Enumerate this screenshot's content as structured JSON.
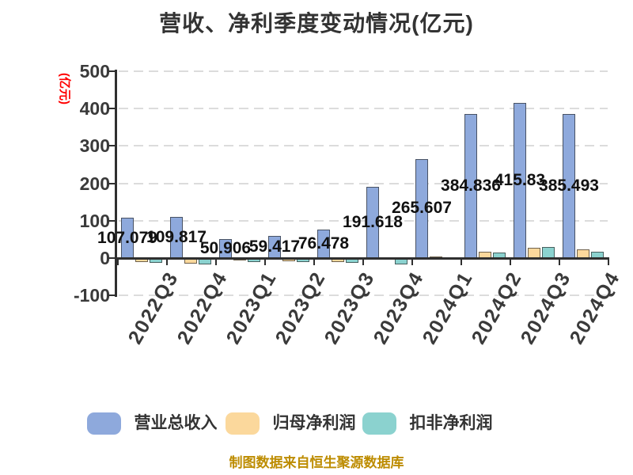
{
  "header": {
    "title": "营收、净利季度变动情况(亿元)"
  },
  "y_axis": {
    "label": "(亿元)"
  },
  "footer": {
    "note": "制图数据来自恒生聚源数据库"
  },
  "legend": {
    "items": [
      "营业总收入",
      "归母净利润",
      "扣非净利润"
    ]
  },
  "colors": {
    "background": "#FFFFFF",
    "grid": "#DCDCDC",
    "axis": "#2F2F2F",
    "tick_text": "#3A3A3A",
    "bar_label_text": "#111111",
    "y_axis_label": "#FF0000",
    "footer_text": "#BD8C00"
  },
  "chart_data": {
    "type": "bar",
    "title": "营收、净利季度变动情况(亿元)",
    "ylabel": "(亿元)",
    "xlabel": "",
    "categories": [
      "2022Q3",
      "2022Q4",
      "2023Q1",
      "2023Q2",
      "2023Q3",
      "2023Q4",
      "2024Q1",
      "2024Q2",
      "2024Q3",
      "2024Q4"
    ],
    "series": [
      {
        "name": "营业总收入",
        "color": "#8EA9DC",
        "values": [
          107.079,
          109.817,
          50.906,
          59.417,
          76.478,
          191.618,
          265.607,
          384.836,
          415.83,
          385.493
        ],
        "labels": [
          "107.079",
          "109.817",
          "50.906",
          "59.417",
          "76.478",
          "191.618",
          "265.607",
          "384.836",
          "415.83",
          "385.493"
        ]
      },
      {
        "name": "归母净利润",
        "color": "#FBD89C",
        "values": [
          -10,
          -14,
          -7,
          -8,
          -10,
          -3,
          4,
          17,
          27,
          24
        ],
        "values_estimated": true
      },
      {
        "name": "扣非净利润",
        "color": "#8BD2CF",
        "values": [
          -13,
          -18,
          -11,
          -11,
          -13,
          -16,
          2,
          15,
          29,
          18
        ],
        "values_estimated": true
      }
    ],
    "y_ticks": [
      500,
      400,
      300,
      200,
      100,
      0,
      -100
    ],
    "ylim": [
      -100,
      500
    ],
    "grid": "dashed-horizontal",
    "legend_position": "bottom",
    "bar_label_series": "营业总收入",
    "bar_label_position": "center-of-bar"
  }
}
